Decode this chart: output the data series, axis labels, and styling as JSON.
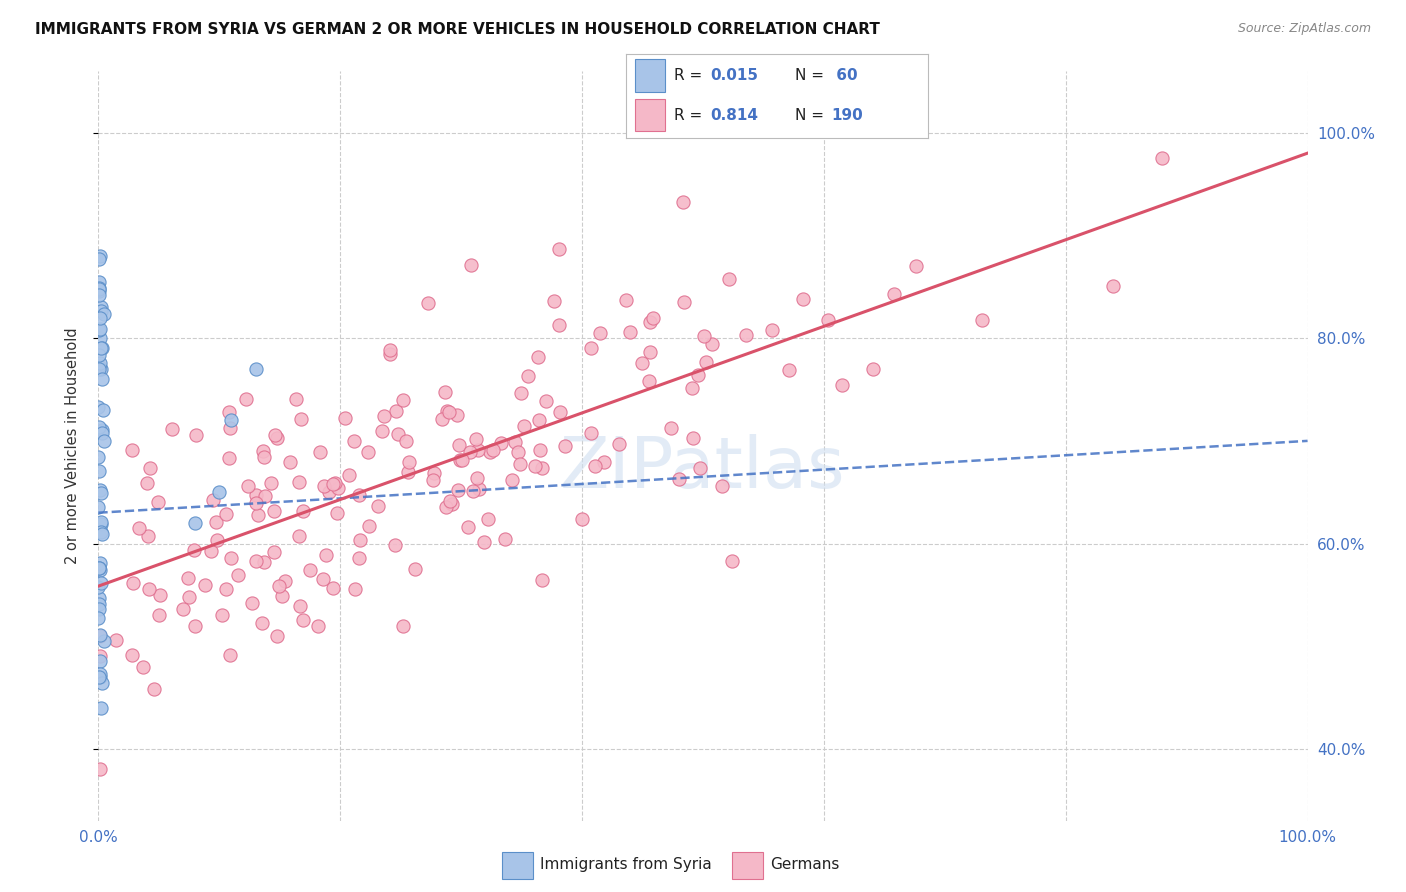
{
  "title": "IMMIGRANTS FROM SYRIA VS GERMAN 2 OR MORE VEHICLES IN HOUSEHOLD CORRELATION CHART",
  "source": "Source: ZipAtlas.com",
  "ylabel": "2 or more Vehicles in Household",
  "legend_syria": "Immigrants from Syria",
  "legend_german": "Germans",
  "color_syria_face": "#a8c4e8",
  "color_syria_edge": "#5b8fc9",
  "color_german_face": "#f5b8c8",
  "color_german_edge": "#e07090",
  "color_blue": "#4472c4",
  "color_pink": "#d9526a",
  "color_text_blue": "#4472c4",
  "ytick_vals": [
    0.4,
    0.6,
    0.8,
    1.0
  ],
  "ytick_labels": [
    "40.0%",
    "60.0%",
    "80.0%",
    "100.0%"
  ],
  "xlim": [
    0.0,
    1.0
  ],
  "ylim": [
    0.33,
    1.06
  ],
  "grid_color": "#cccccc",
  "watermark": "ZIPatlas",
  "watermark_color": "#d0dff0"
}
